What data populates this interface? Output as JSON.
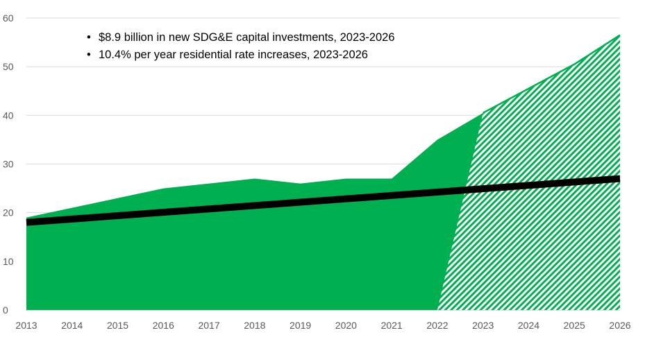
{
  "chart_data": {
    "type": "area",
    "x": [
      2013,
      2014,
      2015,
      2016,
      2017,
      2018,
      2019,
      2020,
      2021,
      2022,
      2023,
      2024,
      2025,
      2026
    ],
    "series": [
      {
        "values": [
          19,
          21,
          23,
          25,
          26,
          27,
          26,
          27,
          27,
          35,
          40.5,
          45.5,
          50.5,
          56.5
        ],
        "style": "solid-area",
        "color": "#00B050"
      },
      {
        "values": [
          null,
          null,
          null,
          null,
          null,
          null,
          null,
          null,
          null,
          0,
          40.5,
          45.5,
          50.5,
          56.5
        ],
        "style": "hatched-area",
        "color": "#00B050"
      },
      {
        "values": [
          18,
          null,
          null,
          null,
          null,
          null,
          null,
          null,
          null,
          null,
          null,
          null,
          null,
          27
        ],
        "style": "trend-line",
        "color": "#000000"
      }
    ],
    "ylim": [
      0,
      60
    ],
    "yticks": [
      0,
      10,
      20,
      30,
      40,
      50,
      60
    ],
    "xticks": [
      "2013",
      "2014",
      "2015",
      "2016",
      "2017",
      "2018",
      "2019",
      "2020",
      "2021",
      "2022",
      "2023",
      "2024",
      "2025",
      "2026"
    ],
    "grid": "horizontal",
    "annotations": [
      "$8.9 billion in new SDG&E capital investments, 2023-2026",
      "10.4% per year residential rate increases, 2023-2026"
    ],
    "bullet": "•"
  }
}
